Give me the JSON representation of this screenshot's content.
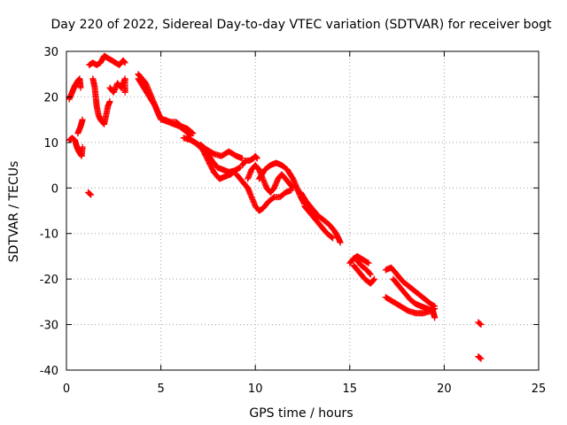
{
  "chart_data": {
    "type": "scatter",
    "title": "Day 220 of 2022, Sidereal Day-to-day VTEC variation (SDTVAR) for receiver bogt",
    "xlabel": "GPS time / hours",
    "ylabel": "SDTVAR / TECUs",
    "xlim": [
      0,
      25
    ],
    "ylim": [
      -40,
      30
    ],
    "xticks": [
      0,
      5,
      10,
      15,
      20,
      25
    ],
    "yticks": [
      -40,
      -30,
      -20,
      -10,
      0,
      10,
      20,
      30
    ],
    "xtick_labels": [
      "0",
      "5",
      "10",
      "15",
      "20",
      "25"
    ],
    "ytick_labels": [
      "-40",
      "-30",
      "-20",
      "-10",
      "0",
      "10",
      "20",
      "30"
    ],
    "grid": true,
    "marker": "plus",
    "color": "#ff0000",
    "series": [
      {
        "name": "SDTVAR",
        "segments": [
          [
            [
              0.15,
              19.5
            ],
            [
              0.3,
              21
            ],
            [
              0.45,
              22.5
            ],
            [
              0.6,
              23.5
            ],
            [
              0.7,
              24
            ],
            [
              0.75,
              22
            ]
          ],
          [
            [
              0.15,
              10.5
            ],
            [
              0.3,
              11
            ],
            [
              0.45,
              10.5
            ],
            [
              0.55,
              9
            ],
            [
              0.65,
              8
            ],
            [
              0.8,
              7
            ],
            [
              0.85,
              9
            ]
          ],
          [
            [
              0.6,
              12
            ],
            [
              0.75,
              13.5
            ],
            [
              0.85,
              15
            ]
          ],
          [
            [
              1.15,
              -1
            ],
            [
              1.3,
              -1.5
            ]
          ],
          [
            [
              1.2,
              27
            ],
            [
              1.4,
              27.5
            ],
            [
              1.6,
              27
            ],
            [
              1.8,
              27.5
            ],
            [
              2.0,
              29
            ],
            [
              2.2,
              28.5
            ],
            [
              2.4,
              28
            ],
            [
              2.6,
              27.5
            ],
            [
              2.8,
              27
            ],
            [
              3.0,
              28
            ],
            [
              3.1,
              27.5
            ]
          ],
          [
            [
              1.4,
              24
            ],
            [
              1.5,
              22
            ],
            [
              1.55,
              20
            ],
            [
              1.6,
              18
            ],
            [
              1.7,
              16
            ],
            [
              1.8,
              15
            ],
            [
              2.0,
              14
            ],
            [
              2.1,
              16
            ],
            [
              2.2,
              18
            ],
            [
              2.3,
              19
            ]
          ],
          [
            [
              2.3,
              22
            ],
            [
              2.5,
              21
            ],
            [
              2.7,
              23
            ],
            [
              2.9,
              22
            ],
            [
              3.1,
              24
            ],
            [
              3.1,
              21
            ]
          ],
          [
            [
              3.8,
              25
            ],
            [
              4.0,
              24
            ],
            [
              4.2,
              23
            ],
            [
              4.4,
              21
            ],
            [
              4.6,
              19
            ],
            [
              4.8,
              17
            ],
            [
              5.0,
              15
            ],
            [
              5.2,
              15
            ],
            [
              5.5,
              14.5
            ],
            [
              5.8,
              14.5
            ],
            [
              6.1,
              13.5
            ],
            [
              6.4,
              13
            ],
            [
              6.7,
              12
            ]
          ],
          [
            [
              3.8,
              24
            ],
            [
              4.1,
              22
            ],
            [
              4.4,
              20
            ],
            [
              4.7,
              18
            ],
            [
              4.9,
              16
            ],
            [
              5.1,
              15
            ],
            [
              5.4,
              14.5
            ],
            [
              5.7,
              14
            ],
            [
              6.0,
              13.5
            ],
            [
              6.3,
              12.5
            ],
            [
              6.6,
              11.5
            ]
          ],
          [
            [
              6.2,
              11
            ],
            [
              6.6,
              10.5
            ],
            [
              7.0,
              9.5
            ],
            [
              7.4,
              8
            ],
            [
              7.7,
              6
            ],
            [
              8.0,
              4.5
            ],
            [
              8.3,
              4
            ],
            [
              8.6,
              3.5
            ],
            [
              8.9,
              3.8
            ],
            [
              9.2,
              4.5
            ]
          ],
          [
            [
              6.4,
              11
            ],
            [
              6.8,
              10
            ],
            [
              7.2,
              8.5
            ],
            [
              7.5,
              6
            ],
            [
              7.8,
              3.5
            ],
            [
              8.1,
              2
            ],
            [
              8.4,
              2.5
            ],
            [
              8.7,
              3
            ],
            [
              9.0,
              4
            ]
          ],
          [
            [
              7.1,
              9.5
            ],
            [
              7.4,
              8.5
            ],
            [
              7.8,
              7.5
            ],
            [
              8.2,
              7
            ],
            [
              8.6,
              8
            ],
            [
              9.0,
              7
            ],
            [
              9.3,
              6.5
            ]
          ],
          [
            [
              9.3,
              5
            ],
            [
              9.5,
              6
            ],
            [
              9.7,
              6
            ],
            [
              9.9,
              6.5
            ],
            [
              10.0,
              7
            ],
            [
              10.1,
              6.5
            ]
          ],
          [
            [
              9.0,
              3
            ],
            [
              9.2,
              2
            ],
            [
              9.4,
              1
            ],
            [
              9.6,
              0
            ],
            [
              9.8,
              -2
            ],
            [
              10.0,
              -4
            ],
            [
              10.2,
              -5
            ],
            [
              10.4,
              -4.5
            ],
            [
              10.7,
              -3
            ],
            [
              11.0,
              -2
            ],
            [
              11.3,
              -2
            ],
            [
              11.6,
              -1
            ],
            [
              11.9,
              -0.5
            ]
          ],
          [
            [
              9.6,
              2
            ],
            [
              9.8,
              4
            ],
            [
              10.0,
              5
            ],
            [
              10.2,
              4
            ],
            [
              10.4,
              2
            ],
            [
              10.6,
              0
            ],
            [
              10.8,
              -1
            ],
            [
              11.0,
              0
            ],
            [
              11.2,
              2
            ],
            [
              11.4,
              3
            ],
            [
              11.6,
              2
            ],
            [
              11.8,
              1
            ],
            [
              12.0,
              0
            ]
          ],
          [
            [
              10.2,
              2
            ],
            [
              10.5,
              4
            ],
            [
              10.8,
              5
            ],
            [
              11.1,
              5.5
            ],
            [
              11.4,
              5
            ],
            [
              11.7,
              4
            ],
            [
              12.0,
              2
            ],
            [
              12.2,
              0
            ],
            [
              12.4,
              -2
            ],
            [
              12.6,
              -3.5
            ]
          ],
          [
            [
              12.4,
              -1
            ],
            [
              12.7,
              -3
            ],
            [
              13.0,
              -4.5
            ],
            [
              13.3,
              -6
            ],
            [
              13.6,
              -7
            ],
            [
              13.9,
              -8
            ],
            [
              14.2,
              -9.5
            ],
            [
              14.4,
              -11
            ],
            [
              14.5,
              -12
            ]
          ],
          [
            [
              12.6,
              -4
            ],
            [
              12.9,
              -5.5
            ],
            [
              13.2,
              -7
            ],
            [
              13.5,
              -8.5
            ],
            [
              13.8,
              -10
            ],
            [
              14.1,
              -11
            ]
          ],
          [
            [
              15.0,
              -16.5
            ],
            [
              15.2,
              -15.5
            ],
            [
              15.4,
              -15
            ],
            [
              15.6,
              -15.5
            ],
            [
              15.8,
              -16
            ],
            [
              16.0,
              -16.5
            ]
          ],
          [
            [
              15.2,
              -17
            ],
            [
              15.4,
              -18
            ],
            [
              15.6,
              -19
            ],
            [
              15.8,
              -20
            ],
            [
              16.1,
              -21
            ],
            [
              16.3,
              -20
            ]
          ],
          [
            [
              15.4,
              -16
            ],
            [
              15.6,
              -17
            ],
            [
              15.9,
              -18
            ],
            [
              16.1,
              -19
            ]
          ],
          [
            [
              16.9,
              -18
            ],
            [
              17.2,
              -17.5
            ],
            [
              17.5,
              -19
            ],
            [
              17.8,
              -20.5
            ],
            [
              18.1,
              -21.5
            ],
            [
              18.4,
              -22.5
            ],
            [
              18.7,
              -23.5
            ],
            [
              19.0,
              -24.5
            ],
            [
              19.3,
              -25.5
            ],
            [
              19.5,
              -26
            ]
          ],
          [
            [
              16.9,
              -24
            ],
            [
              17.3,
              -25
            ],
            [
              17.7,
              -26
            ],
            [
              18.1,
              -27
            ],
            [
              18.5,
              -27.5
            ],
            [
              18.9,
              -27.5
            ],
            [
              19.3,
              -27
            ],
            [
              19.5,
              -26.5
            ]
          ],
          [
            [
              17.3,
              -20
            ],
            [
              17.6,
              -21.5
            ],
            [
              17.9,
              -23
            ],
            [
              18.2,
              -24.5
            ],
            [
              18.5,
              -25.5
            ],
            [
              18.8,
              -26
            ],
            [
              19.1,
              -26.5
            ],
            [
              19.4,
              -27
            ],
            [
              19.5,
              -28.5
            ]
          ],
          [
            [
              21.8,
              -29.5
            ],
            [
              21.95,
              -30
            ]
          ],
          [
            [
              21.8,
              -37
            ],
            [
              21.95,
              -37.5
            ]
          ]
        ]
      }
    ]
  }
}
